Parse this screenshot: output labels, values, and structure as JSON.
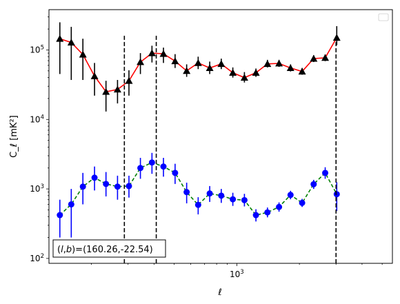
{
  "chart_data": {
    "type": "scatter",
    "xlabel": "ℓ",
    "ylabel": "C_ℓ [mK²]",
    "x_scale": "log",
    "y_scale": "log",
    "xlim": [
      125,
      5600
    ],
    "ylim": [
      85,
      380000
    ],
    "x_tick_labels": [
      {
        "value": 1000,
        "base": "10",
        "exp": "3"
      }
    ],
    "y_tick_labels": [
      {
        "value": 100,
        "base": "10",
        "exp": "2"
      },
      {
        "value": 1000,
        "base": "10",
        "exp": "3"
      },
      {
        "value": 10000,
        "base": "10",
        "exp": "4"
      },
      {
        "value": 100000,
        "base": "10",
        "exp": "5"
      }
    ],
    "annotation": "(l,b)=(160.26,-22.54)",
    "annotation_parts": {
      "prefix": "(",
      "l": "l",
      "comma": ",",
      "b": "b",
      "suffix": ")=(160.26,-22.54)"
    },
    "legend": "empty box, top-right",
    "vlines": [
      288,
      410,
      3000
    ],
    "series": [
      {
        "marker": "triangle",
        "marker_color": "#000000",
        "line_color": "#ff0000",
        "line_style": "solid",
        "points": [
          {
            "x": 141,
            "y": 145000,
            "lo": 45000,
            "hi": 250000
          },
          {
            "x": 160,
            "y": 128000,
            "lo": 37000,
            "hi": 215000
          },
          {
            "x": 182,
            "y": 86000,
            "lo": 37000,
            "hi": 145000
          },
          {
            "x": 207,
            "y": 42000,
            "lo": 22000,
            "hi": 65000
          },
          {
            "x": 235,
            "y": 25000,
            "lo": 13000,
            "hi": 36000
          },
          {
            "x": 267,
            "y": 27000,
            "lo": 17000,
            "hi": 37000
          },
          {
            "x": 303,
            "y": 36000,
            "lo": 22000,
            "hi": 51000
          },
          {
            "x": 344,
            "y": 67000,
            "lo": 45000,
            "hi": 90000
          },
          {
            "x": 391,
            "y": 90000,
            "lo": 66000,
            "hi": 115000
          },
          {
            "x": 444,
            "y": 88000,
            "lo": 65000,
            "hi": 108000
          },
          {
            "x": 505,
            "y": 69000,
            "lo": 55000,
            "hi": 87000
          },
          {
            "x": 574,
            "y": 50000,
            "lo": 41000,
            "hi": 62000
          },
          {
            "x": 652,
            "y": 65000,
            "lo": 53000,
            "hi": 80000
          },
          {
            "x": 741,
            "y": 55000,
            "lo": 45000,
            "hi": 68000
          },
          {
            "x": 842,
            "y": 63000,
            "lo": 53000,
            "hi": 75000
          },
          {
            "x": 957,
            "y": 47000,
            "lo": 40000,
            "hi": 56000
          },
          {
            "x": 1088,
            "y": 40000,
            "lo": 34000,
            "hi": 48000
          },
          {
            "x": 1236,
            "y": 47000,
            "lo": 41000,
            "hi": 54000
          },
          {
            "x": 1404,
            "y": 63000,
            "lo": 56000,
            "hi": 72000
          },
          {
            "x": 1596,
            "y": 64000,
            "lo": 57000,
            "hi": 72000
          },
          {
            "x": 1813,
            "y": 55000,
            "lo": 49000,
            "hi": 62000
          },
          {
            "x": 2061,
            "y": 49000,
            "lo": 44000,
            "hi": 55000
          },
          {
            "x": 2342,
            "y": 75000,
            "lo": 67000,
            "hi": 84000
          },
          {
            "x": 2661,
            "y": 77000,
            "lo": 69000,
            "hi": 86000
          },
          {
            "x": 3024,
            "y": 150000,
            "lo": 117000,
            "hi": 220000
          }
        ]
      },
      {
        "marker": "circle",
        "marker_color": "#0000ff",
        "line_color": "#008000",
        "line_style": "dashed",
        "points": [
          {
            "x": 141,
            "y": 420,
            "lo": 200,
            "hi": 700
          },
          {
            "x": 160,
            "y": 600,
            "lo": 200,
            "hi": 1000
          },
          {
            "x": 182,
            "y": 1080,
            "lo": 600,
            "hi": 1700
          },
          {
            "x": 207,
            "y": 1450,
            "lo": 950,
            "hi": 2100
          },
          {
            "x": 235,
            "y": 1180,
            "lo": 780,
            "hi": 1750
          },
          {
            "x": 267,
            "y": 1080,
            "lo": 700,
            "hi": 1550
          },
          {
            "x": 303,
            "y": 1100,
            "lo": 750,
            "hi": 1550
          },
          {
            "x": 344,
            "y": 2000,
            "lo": 1400,
            "hi": 2800
          },
          {
            "x": 391,
            "y": 2400,
            "lo": 1650,
            "hi": 3300
          },
          {
            "x": 444,
            "y": 2100,
            "lo": 1500,
            "hi": 2800
          },
          {
            "x": 505,
            "y": 1700,
            "lo": 1180,
            "hi": 2300
          },
          {
            "x": 574,
            "y": 900,
            "lo": 620,
            "hi": 1230
          },
          {
            "x": 652,
            "y": 590,
            "lo": 430,
            "hi": 760
          },
          {
            "x": 741,
            "y": 860,
            "lo": 650,
            "hi": 1100
          },
          {
            "x": 842,
            "y": 800,
            "lo": 630,
            "hi": 1000
          },
          {
            "x": 957,
            "y": 710,
            "lo": 570,
            "hi": 880
          },
          {
            "x": 1088,
            "y": 690,
            "lo": 560,
            "hi": 850
          },
          {
            "x": 1236,
            "y": 420,
            "lo": 340,
            "hi": 510
          },
          {
            "x": 1404,
            "y": 460,
            "lo": 390,
            "hi": 540
          },
          {
            "x": 1596,
            "y": 550,
            "lo": 470,
            "hi": 640
          },
          {
            "x": 1813,
            "y": 820,
            "lo": 710,
            "hi": 940
          },
          {
            "x": 2061,
            "y": 630,
            "lo": 550,
            "hi": 720
          },
          {
            "x": 2342,
            "y": 1170,
            "lo": 1000,
            "hi": 1350
          },
          {
            "x": 2661,
            "y": 1700,
            "lo": 1400,
            "hi": 2050
          },
          {
            "x": 3024,
            "y": 840,
            "lo": 480,
            "hi": 1250
          }
        ]
      }
    ]
  }
}
